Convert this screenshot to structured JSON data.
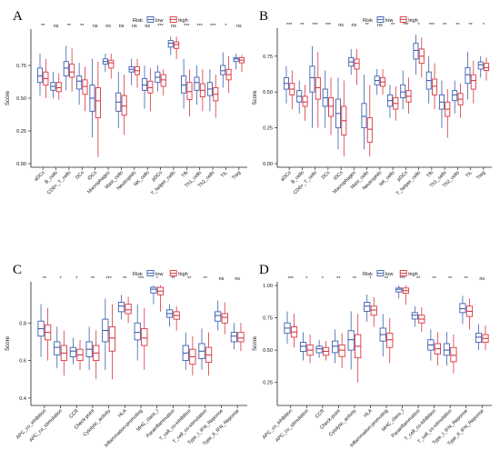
{
  "colors": {
    "low": "#3b5fb0",
    "high": "#d9363e",
    "axis": "#222222"
  },
  "legend": {
    "title": "Risk",
    "labels": [
      "low",
      "high"
    ]
  },
  "chart_data": [
    {
      "panel": "A",
      "type": "boxplot",
      "ylabel": "Score",
      "ylim": [
        0,
        1.0
      ],
      "yticks": [
        0.0,
        0.25,
        0.5,
        0.75
      ],
      "ytick_labels": [
        "0.00",
        "0.25",
        "0.50",
        "0.75"
      ],
      "categories": [
        "aDCs",
        "B_cells",
        "CD8+_T_cells",
        "DCs",
        "iDCs",
        "Macrophages",
        "Mast_cells",
        "Neutrophils",
        "NK_cells",
        "pDCs",
        "T_helper_cells",
        "Tfh",
        "Th1_cells",
        "Th2_cells",
        "TIL",
        "Treg"
      ],
      "significance": [
        "**",
        "ns",
        "**",
        "**",
        "ns",
        "ns",
        "ns",
        "ns",
        "ns",
        "***",
        "ns",
        "***",
        "***",
        "***",
        "*",
        "ns"
      ],
      "series": [
        {
          "name": "low",
          "box": [
            [
              0.52,
              0.62,
              0.67,
              0.73,
              0.84
            ],
            [
              0.5,
              0.56,
              0.59,
              0.62,
              0.7
            ],
            [
              0.56,
              0.67,
              0.73,
              0.78,
              0.9
            ],
            [
              0.45,
              0.57,
              0.63,
              0.67,
              0.77
            ],
            [
              0.2,
              0.4,
              0.5,
              0.6,
              0.8
            ],
            [
              0.7,
              0.76,
              0.78,
              0.8,
              0.84
            ],
            [
              0.27,
              0.4,
              0.47,
              0.54,
              0.7
            ],
            [
              0.6,
              0.7,
              0.72,
              0.74,
              0.8
            ],
            [
              0.42,
              0.56,
              0.6,
              0.65,
              0.75
            ],
            [
              0.55,
              0.62,
              0.66,
              0.7,
              0.75
            ],
            [
              0.83,
              0.89,
              0.92,
              0.94,
              0.97
            ],
            [
              0.42,
              0.54,
              0.6,
              0.67,
              0.8
            ],
            [
              0.45,
              0.56,
              0.62,
              0.66,
              0.75
            ],
            [
              0.4,
              0.52,
              0.57,
              0.62,
              0.72
            ],
            [
              0.58,
              0.68,
              0.71,
              0.75,
              0.85
            ],
            [
              0.72,
              0.78,
              0.8,
              0.81,
              0.84
            ]
          ]
        },
        {
          "name": "high",
          "box": [
            [
              0.5,
              0.6,
              0.65,
              0.7,
              0.8
            ],
            [
              0.49,
              0.55,
              0.58,
              0.62,
              0.69
            ],
            [
              0.55,
              0.66,
              0.7,
              0.76,
              0.88
            ],
            [
              0.4,
              0.53,
              0.59,
              0.64,
              0.74
            ],
            [
              0.05,
              0.35,
              0.48,
              0.58,
              0.78
            ],
            [
              0.65,
              0.73,
              0.77,
              0.79,
              0.84
            ],
            [
              0.22,
              0.37,
              0.44,
              0.52,
              0.68
            ],
            [
              0.58,
              0.68,
              0.71,
              0.74,
              0.8
            ],
            [
              0.4,
              0.54,
              0.58,
              0.63,
              0.73
            ],
            [
              0.52,
              0.59,
              0.64,
              0.68,
              0.72
            ],
            [
              0.8,
              0.88,
              0.91,
              0.93,
              0.97
            ],
            [
              0.36,
              0.49,
              0.55,
              0.62,
              0.72
            ],
            [
              0.4,
              0.51,
              0.56,
              0.61,
              0.72
            ],
            [
              0.35,
              0.48,
              0.53,
              0.58,
              0.68
            ],
            [
              0.54,
              0.64,
              0.68,
              0.72,
              0.82
            ],
            [
              0.7,
              0.77,
              0.79,
              0.81,
              0.83
            ]
          ]
        }
      ]
    },
    {
      "panel": "B",
      "type": "boxplot",
      "ylabel": "Score",
      "ylim": [
        0,
        0.92
      ],
      "yticks": [
        0.0,
        0.25,
        0.5,
        0.75
      ],
      "ytick_labels": [
        "0.00",
        "0.25",
        "0.50",
        "0.75"
      ],
      "categories": [
        "aDCs",
        "B_cells",
        "CD8+_T_cells",
        "DCs",
        "iDCs",
        "Macrophages",
        "Mast_cells",
        "Neutrophils",
        "NK_cells",
        "pDCs",
        "T_helper_cells",
        "Tfh",
        "Th1_cells",
        "Th2_cells",
        "TIL",
        "Treg"
      ],
      "significance": [
        "***",
        "**",
        "***",
        "***",
        "ns",
        "ns",
        "**",
        "ns",
        "**",
        "***",
        "*",
        "***",
        "**",
        "**",
        "**",
        "*"
      ],
      "series": [
        {
          "name": "low",
          "box": [
            [
              0.42,
              0.52,
              0.56,
              0.6,
              0.68
            ],
            [
              0.35,
              0.43,
              0.47,
              0.51,
              0.58
            ],
            [
              0.25,
              0.5,
              0.6,
              0.68,
              0.82
            ],
            [
              0.25,
              0.4,
              0.46,
              0.52,
              0.65
            ],
            [
              0.1,
              0.25,
              0.35,
              0.45,
              0.6
            ],
            [
              0.62,
              0.68,
              0.71,
              0.74,
              0.8
            ],
            [
              0.1,
              0.25,
              0.33,
              0.42,
              0.62
            ],
            [
              0.48,
              0.55,
              0.58,
              0.61,
              0.66
            ],
            [
              0.32,
              0.4,
              0.44,
              0.48,
              0.55
            ],
            [
              0.38,
              0.46,
              0.5,
              0.55,
              0.65
            ],
            [
              0.62,
              0.73,
              0.79,
              0.84,
              0.9
            ],
            [
              0.42,
              0.52,
              0.58,
              0.64,
              0.75
            ],
            [
              0.25,
              0.38,
              0.43,
              0.48,
              0.58
            ],
            [
              0.35,
              0.44,
              0.48,
              0.51,
              0.58
            ],
            [
              0.45,
              0.56,
              0.62,
              0.67,
              0.78
            ],
            [
              0.6,
              0.66,
              0.69,
              0.71,
              0.75
            ]
          ]
        },
        {
          "name": "high",
          "box": [
            [
              0.38,
              0.48,
              0.52,
              0.56,
              0.65
            ],
            [
              0.3,
              0.4,
              0.43,
              0.47,
              0.55
            ],
            [
              0.25,
              0.45,
              0.53,
              0.6,
              0.78
            ],
            [
              0.2,
              0.33,
              0.4,
              0.46,
              0.6
            ],
            [
              0.05,
              0.2,
              0.3,
              0.4,
              0.58
            ],
            [
              0.55,
              0.66,
              0.7,
              0.73,
              0.8
            ],
            [
              0.05,
              0.15,
              0.24,
              0.32,
              0.55
            ],
            [
              0.48,
              0.54,
              0.57,
              0.6,
              0.66
            ],
            [
              0.3,
              0.38,
              0.42,
              0.46,
              0.54
            ],
            [
              0.35,
              0.43,
              0.47,
              0.51,
              0.6
            ],
            [
              0.6,
              0.7,
              0.75,
              0.8,
              0.88
            ],
            [
              0.38,
              0.48,
              0.54,
              0.59,
              0.7
            ],
            [
              0.18,
              0.33,
              0.38,
              0.43,
              0.52
            ],
            [
              0.32,
              0.41,
              0.45,
              0.49,
              0.56
            ],
            [
              0.42,
              0.52,
              0.58,
              0.62,
              0.72
            ],
            [
              0.58,
              0.65,
              0.67,
              0.7,
              0.74
            ]
          ]
        }
      ]
    },
    {
      "panel": "C",
      "type": "boxplot",
      "ylabel": "Score",
      "ylim": [
        0.38,
        1.0
      ],
      "yticks": [
        0.4,
        0.6,
        0.8
      ],
      "ytick_labels": [
        "0.4",
        "0.6",
        "0.8"
      ],
      "categories": [
        "APC_co_inhibition",
        "APC_co_stimulation",
        "CCR",
        "Check-point",
        "Cytolytic_activity",
        "HLA",
        "Inflammation-promoting",
        "MHC_class_I",
        "Parainflammation",
        "T_cell_co-inhibition",
        "T_cell_co-stimulation",
        "Type_I_IFN_Reponse",
        "Type_II_IFN_Reponse"
      ],
      "significance": [
        "**",
        "*",
        "*",
        "**",
        "***",
        "**",
        "***",
        "*",
        "**",
        "**",
        "**",
        "ns",
        "ns"
      ],
      "series": [
        {
          "name": "low",
          "box": [
            [
              0.62,
              0.73,
              0.77,
              0.81,
              0.9
            ],
            [
              0.56,
              0.63,
              0.67,
              0.7,
              0.78
            ],
            [
              0.58,
              0.62,
              0.65,
              0.67,
              0.72
            ],
            [
              0.55,
              0.62,
              0.66,
              0.7,
              0.78
            ],
            [
              0.55,
              0.7,
              0.76,
              0.82,
              0.93
            ],
            [
              0.82,
              0.86,
              0.89,
              0.91,
              0.95
            ],
            [
              0.6,
              0.71,
              0.75,
              0.8,
              0.9
            ],
            [
              0.9,
              0.96,
              0.98,
              0.99,
              1.0
            ],
            [
              0.78,
              0.83,
              0.85,
              0.87,
              0.9
            ],
            [
              0.55,
              0.6,
              0.64,
              0.68,
              0.75
            ],
            [
              0.55,
              0.61,
              0.65,
              0.69,
              0.77
            ],
            [
              0.76,
              0.81,
              0.84,
              0.86,
              0.92
            ],
            [
              0.66,
              0.7,
              0.73,
              0.75,
              0.8
            ]
          ]
        },
        {
          "name": "high",
          "box": [
            [
              0.6,
              0.71,
              0.75,
              0.79,
              0.88
            ],
            [
              0.52,
              0.6,
              0.64,
              0.68,
              0.76
            ],
            [
              0.55,
              0.6,
              0.63,
              0.66,
              0.71
            ],
            [
              0.5,
              0.6,
              0.64,
              0.68,
              0.76
            ],
            [
              0.5,
              0.65,
              0.72,
              0.78,
              0.9
            ],
            [
              0.8,
              0.85,
              0.87,
              0.9,
              0.94
            ],
            [
              0.55,
              0.68,
              0.72,
              0.77,
              0.88
            ],
            [
              0.86,
              0.95,
              0.97,
              0.99,
              1.0
            ],
            [
              0.76,
              0.82,
              0.84,
              0.86,
              0.89
            ],
            [
              0.52,
              0.58,
              0.62,
              0.66,
              0.73
            ],
            [
              0.52,
              0.59,
              0.63,
              0.67,
              0.75
            ],
            [
              0.74,
              0.8,
              0.83,
              0.85,
              0.91
            ],
            [
              0.65,
              0.7,
              0.72,
              0.75,
              0.8
            ]
          ]
        }
      ]
    },
    {
      "panel": "D",
      "type": "boxplot",
      "ylabel": "Score",
      "ylim": [
        0.1,
        1.0
      ],
      "yticks": [
        0.25,
        0.5,
        0.75,
        1.0
      ],
      "ytick_labels": [
        "0.25",
        "0.50",
        "0.75",
        "1.00"
      ],
      "categories": [
        "APC_co_inhibition",
        "APC_co_stimulation",
        "CCR",
        "Check-point",
        "Cytolytic_activity",
        "HLA",
        "Inflammation-promoting",
        "MHC_class_I",
        "Parainflammation",
        "T_cell_co-inhibition",
        "T_cell_co-stimulation",
        "Type_I_IFN_Reponse",
        "Type_II_IFN_Reponse"
      ],
      "significance": [
        "***",
        "*",
        "*",
        "**",
        "**",
        "*",
        "**",
        "***",
        "**",
        "**",
        "**",
        "**",
        "ns"
      ],
      "series": [
        {
          "name": "low",
          "box": [
            [
              0.55,
              0.63,
              0.67,
              0.71,
              0.8
            ],
            [
              0.42,
              0.49,
              0.53,
              0.56,
              0.64
            ],
            [
              0.44,
              0.48,
              0.51,
              0.53,
              0.58
            ],
            [
              0.4,
              0.48,
              0.53,
              0.57,
              0.66
            ],
            [
              0.35,
              0.5,
              0.58,
              0.65,
              0.8
            ],
            [
              0.72,
              0.8,
              0.84,
              0.87,
              0.93
            ],
            [
              0.45,
              0.57,
              0.62,
              0.67,
              0.78
            ],
            [
              0.9,
              0.95,
              0.97,
              0.98,
              1.0
            ],
            [
              0.68,
              0.74,
              0.77,
              0.79,
              0.84
            ],
            [
              0.42,
              0.5,
              0.54,
              0.58,
              0.66
            ],
            [
              0.38,
              0.46,
              0.5,
              0.55,
              0.64
            ],
            [
              0.7,
              0.79,
              0.82,
              0.86,
              0.92
            ],
            [
              0.5,
              0.56,
              0.6,
              0.63,
              0.7
            ]
          ]
        },
        {
          "name": "high",
          "box": [
            [
              0.52,
              0.6,
              0.64,
              0.68,
              0.78
            ],
            [
              0.4,
              0.46,
              0.5,
              0.54,
              0.62
            ],
            [
              0.42,
              0.46,
              0.49,
              0.52,
              0.57
            ],
            [
              0.36,
              0.45,
              0.5,
              0.54,
              0.63
            ],
            [
              0.25,
              0.44,
              0.53,
              0.62,
              0.78
            ],
            [
              0.68,
              0.77,
              0.81,
              0.84,
              0.91
            ],
            [
              0.4,
              0.52,
              0.58,
              0.63,
              0.75
            ],
            [
              0.85,
              0.94,
              0.96,
              0.98,
              1.0
            ],
            [
              0.64,
              0.71,
              0.74,
              0.77,
              0.83
            ],
            [
              0.38,
              0.47,
              0.51,
              0.55,
              0.64
            ],
            [
              0.32,
              0.41,
              0.46,
              0.52,
              0.62
            ],
            [
              0.66,
              0.76,
              0.8,
              0.84,
              0.9
            ],
            [
              0.5,
              0.56,
              0.59,
              0.62,
              0.69
            ]
          ]
        }
      ]
    }
  ]
}
